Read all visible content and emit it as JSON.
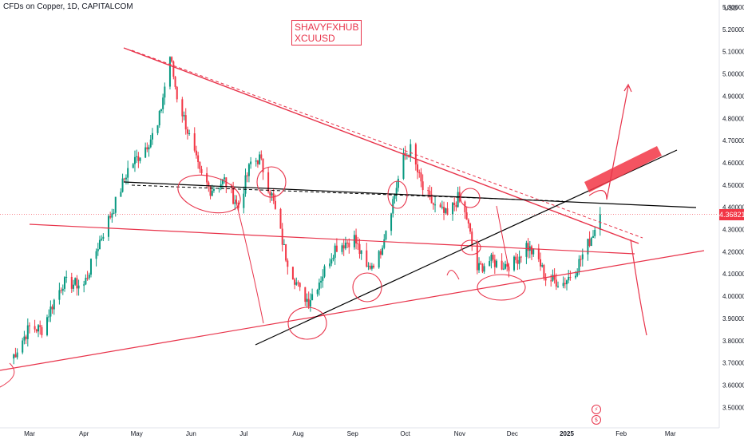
{
  "header": {
    "title": "CFDs on Copper, 1D, CAPITALCOM"
  },
  "watermark": {
    "line1": "SHAVYFXHUB",
    "line2": "XCUUSD"
  },
  "price_label": "4.36821",
  "events": [
    {
      "icon": "lightning-icon",
      "glyph": "⚡"
    },
    {
      "icon": "dividend-icon",
      "glyph": "$"
    }
  ],
  "colors": {
    "up": "#089981",
    "down": "#f23645",
    "drawing": "#e8334a",
    "trendline": "#000000",
    "zone": "#f23645"
  },
  "chart_data": {
    "type": "candlestick",
    "title": "CFDs on Copper, 1D, CAPITALCOM",
    "y_unit": "USD",
    "ylim": [
      3.5,
      5.3
    ],
    "y_ticks": [
      "5.30000",
      "5.20000",
      "5.10000",
      "5.00000",
      "4.90000",
      "4.80000",
      "4.70000",
      "4.60000",
      "4.50000",
      "4.40000",
      "4.30000",
      "4.20000",
      "4.10000",
      "4.00000",
      "3.90000",
      "3.80000",
      "3.70000",
      "3.60000",
      "3.50000"
    ],
    "x_ticks": [
      "Mar",
      "Apr",
      "May",
      "Jun",
      "Jul",
      "Aug",
      "Sep",
      "Oct",
      "Nov",
      "Dec",
      "2025",
      "Feb",
      "Mar"
    ],
    "x_bold": "2025",
    "last_price": 4.36821,
    "grid": false,
    "anchors": [
      [
        "2024-02-20",
        3.72
      ],
      [
        "2024-03-01",
        3.86
      ],
      [
        "2024-03-08",
        3.85
      ],
      [
        "2024-03-15",
        3.98
      ],
      [
        "2024-03-20",
        4.06
      ],
      [
        "2024-04-01",
        4.05
      ],
      [
        "2024-04-10",
        4.25
      ],
      [
        "2024-04-18",
        4.4
      ],
      [
        "2024-04-26",
        4.57
      ],
      [
        "2024-05-05",
        4.66
      ],
      [
        "2024-05-13",
        4.76
      ],
      [
        "2024-05-20",
        5.08
      ],
      [
        "2024-05-24",
        4.9
      ],
      [
        "2024-05-28",
        4.8
      ],
      [
        "2024-06-06",
        4.55
      ],
      [
        "2024-06-12",
        4.48
      ],
      [
        "2024-06-20",
        4.52
      ],
      [
        "2024-06-28",
        4.4
      ],
      [
        "2024-07-05",
        4.6
      ],
      [
        "2024-07-10",
        4.62
      ],
      [
        "2024-07-17",
        4.45
      ],
      [
        "2024-07-25",
        4.18
      ],
      [
        "2024-08-02",
        4.02
      ],
      [
        "2024-08-07",
        3.98
      ],
      [
        "2024-08-15",
        4.1
      ],
      [
        "2024-08-22",
        4.22
      ],
      [
        "2024-09-02",
        4.26
      ],
      [
        "2024-09-09",
        4.12
      ],
      [
        "2024-09-16",
        4.18
      ],
      [
        "2024-09-23",
        4.4
      ],
      [
        "2024-09-30",
        4.62
      ],
      [
        "2024-10-04",
        4.66
      ],
      [
        "2024-10-11",
        4.48
      ],
      [
        "2024-10-18",
        4.4
      ],
      [
        "2024-10-25",
        4.36
      ],
      [
        "2024-10-31",
        4.44
      ],
      [
        "2024-11-05",
        4.35
      ],
      [
        "2024-11-11",
        4.12
      ],
      [
        "2024-11-18",
        4.16
      ],
      [
        "2024-11-25",
        4.14
      ],
      [
        "2024-12-02",
        4.15
      ],
      [
        "2024-12-09",
        4.23
      ],
      [
        "2024-12-16",
        4.16
      ],
      [
        "2024-12-20",
        4.08
      ],
      [
        "2024-12-30",
        4.06
      ],
      [
        "2025-01-06",
        4.12
      ],
      [
        "2025-01-14",
        4.25
      ],
      [
        "2025-01-20",
        4.36
      ]
    ]
  }
}
